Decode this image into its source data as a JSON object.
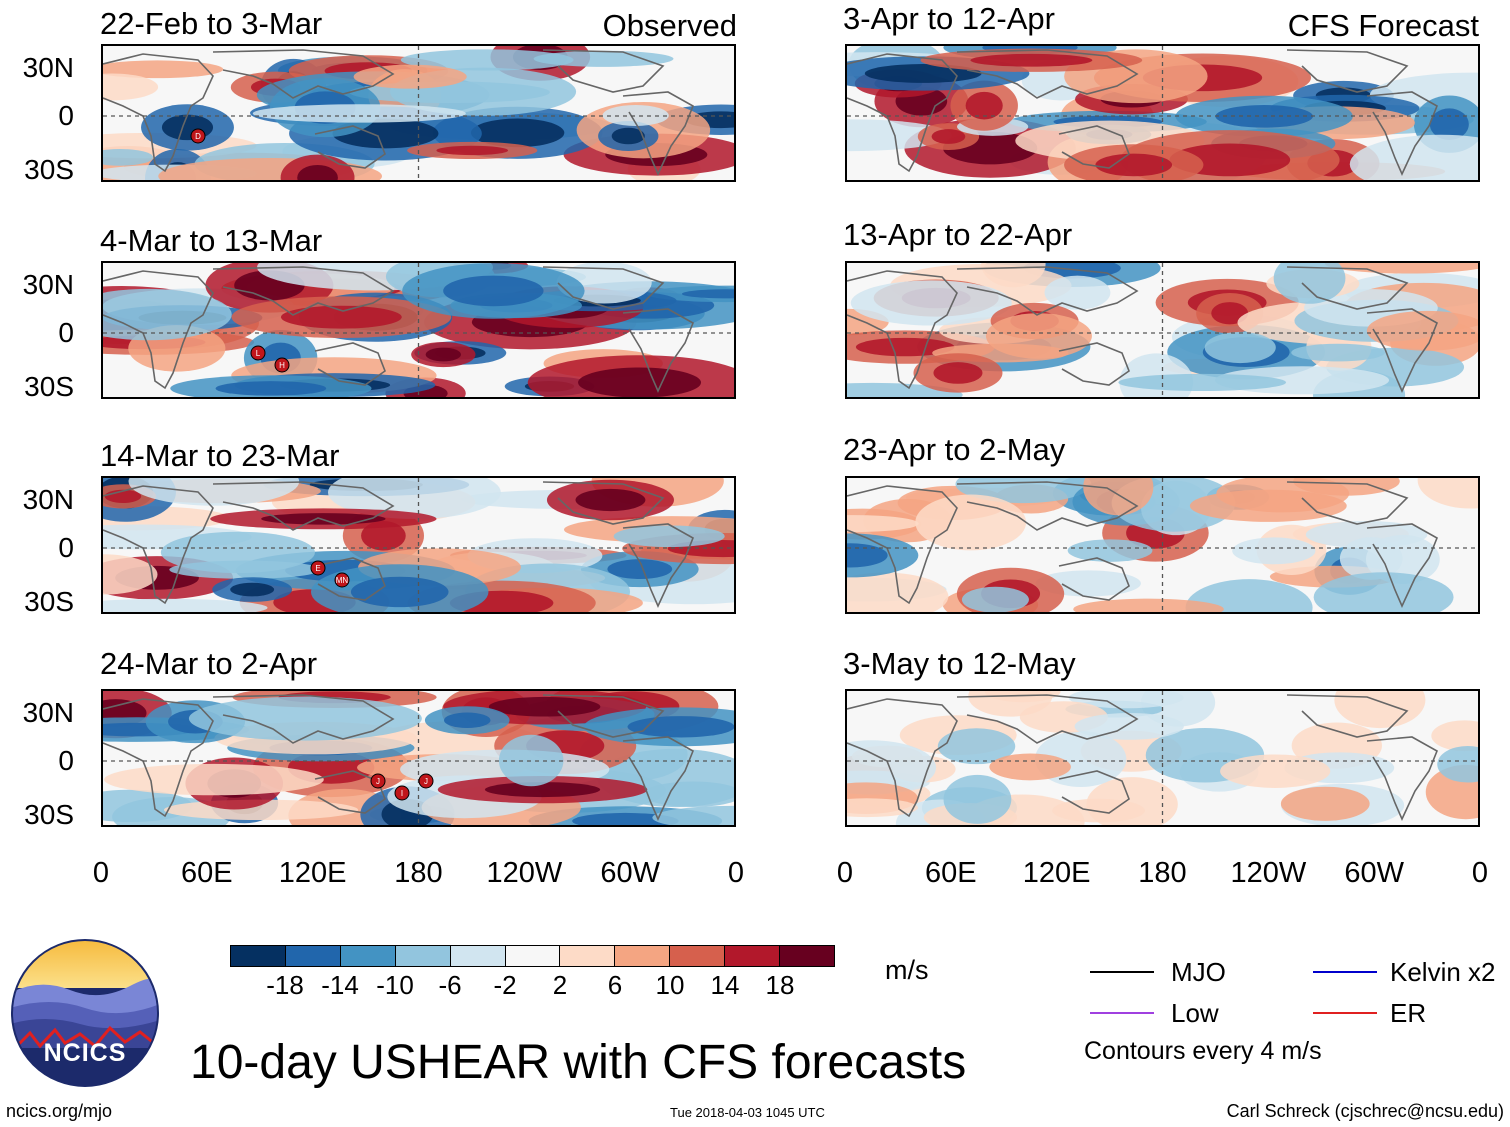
{
  "columns": {
    "left": {
      "tag": "Observed"
    },
    "right": {
      "tag": "CFS Forecast"
    }
  },
  "panels": [
    {
      "id": "obs1",
      "column": "left",
      "period": "22-Feb to 3-Mar",
      "storms": [
        "D"
      ]
    },
    {
      "id": "obs2",
      "column": "left",
      "period": "4-Mar to 13-Mar",
      "storms": [
        "L",
        "H"
      ]
    },
    {
      "id": "obs3",
      "column": "left",
      "period": "14-Mar to 23-Mar",
      "storms": [
        "E",
        "MN"
      ]
    },
    {
      "id": "obs4",
      "column": "left",
      "period": "24-Mar to 2-Apr",
      "storms": [
        "J",
        "I",
        "J"
      ]
    },
    {
      "id": "fc1",
      "column": "right",
      "period": "3-Apr to 12-Apr",
      "storms": []
    },
    {
      "id": "fc2",
      "column": "right",
      "period": "13-Apr to 22-Apr",
      "storms": []
    },
    {
      "id": "fc3",
      "column": "right",
      "period": "23-Apr to 2-May",
      "storms": []
    },
    {
      "id": "fc4",
      "column": "right",
      "period": "3-May to 12-May",
      "storms": []
    }
  ],
  "axes": {
    "lat_labels": [
      "30N",
      "0",
      "30S"
    ],
    "lon_labels": [
      "0",
      "60E",
      "120E",
      "180",
      "120W",
      "60W",
      "0"
    ]
  },
  "colorbar": {
    "colors": [
      "#053061",
      "#2166ac",
      "#4393c3",
      "#92c5de",
      "#d1e5f0",
      "#f7f7f7",
      "#fddbc7",
      "#f4a582",
      "#d6604d",
      "#b2182b",
      "#67001f"
    ],
    "labels": [
      "-18",
      "-14",
      "-10",
      "-6",
      "-2",
      "2",
      "6",
      "10",
      "14",
      "18"
    ],
    "units": "m/s"
  },
  "legend": {
    "items": [
      {
        "label": "MJO",
        "color": "#000000"
      },
      {
        "label": "Kelvin x2",
        "color": "#0000cc"
      },
      {
        "label": "Low",
        "color": "#a040e0"
      },
      {
        "label": "ER",
        "color": "#e02020"
      }
    ],
    "contours_note": "Contours every 4 m/s"
  },
  "logo": {
    "text": "NCICS"
  },
  "title": "10-day USHEAR with CFS forecasts",
  "footer": {
    "url": "ncics.org/mjo",
    "timestamp": "Tue 2018-04-03 1045 UTC",
    "credit": "Carl Schreck (cjschrec@ncsu.edu)"
  }
}
